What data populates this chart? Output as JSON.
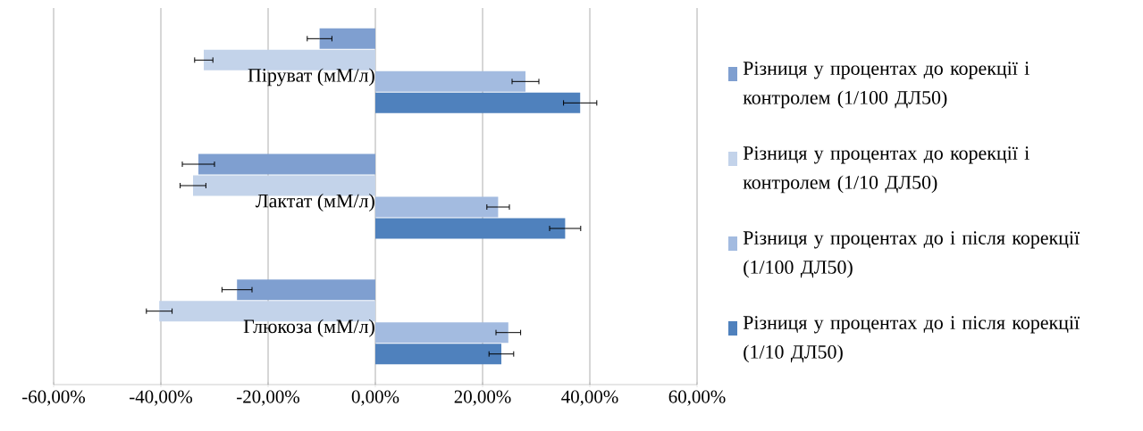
{
  "chart_data": {
    "type": "bar",
    "orientation": "horizontal",
    "categories": [
      "Піруват (мМ/л)",
      "Лактат (мМ/л)",
      "Глюкоза (мМ/л)"
    ],
    "series": [
      {
        "name": "Різниця у процентах до корекції і контролем (1/100  ДЛ50)",
        "color": "#7f9fd0",
        "values": [
          -10.4,
          -33.0,
          -25.8
        ],
        "errors": [
          2.3,
          3.0,
          2.8
        ]
      },
      {
        "name": "Різниця у процентах до корекції і контролем (1/10  ДЛ50)",
        "color": "#c3d3ea",
        "values": [
          -32.0,
          -34.0,
          -40.3
        ],
        "errors": [
          1.7,
          2.4,
          2.4
        ]
      },
      {
        "name": "Різниця у процентах до і   після корекції (1/100  ДЛ50)",
        "color": "#a3bbe0",
        "values": [
          28.0,
          22.9,
          24.8
        ],
        "errors": [
          2.5,
          2.1,
          2.3
        ]
      },
      {
        "name": "Різниця у процентах до і   після корекції (1/10 ДЛ50)",
        "color": "#4f81bd",
        "values": [
          38.2,
          35.4,
          23.5
        ],
        "errors": [
          3.1,
          2.9,
          2.3
        ]
      }
    ],
    "xlim": [
      -60,
      60
    ],
    "xticks": [
      {
        "value": -60,
        "label": "-60,00%"
      },
      {
        "value": -40,
        "label": "-40,00%"
      },
      {
        "value": -20,
        "label": "-20,00%"
      },
      {
        "value": 0,
        "label": "0,00%"
      },
      {
        "value": 20,
        "label": "20,00%"
      },
      {
        "value": 40,
        "label": "40,00%"
      },
      {
        "value": 60,
        "label": "60,00%"
      }
    ],
    "grid": "x",
    "legend": "right"
  }
}
